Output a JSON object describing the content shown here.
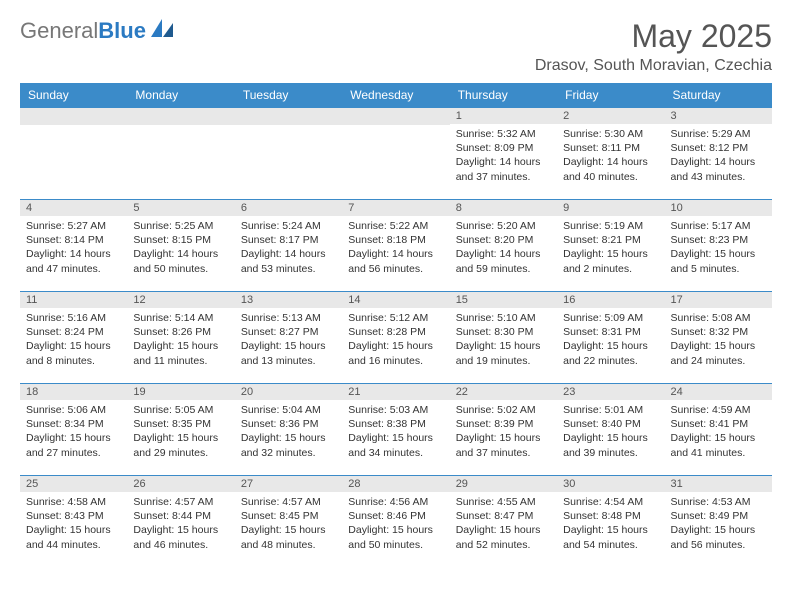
{
  "logo": {
    "text_gray": "General",
    "text_blue": "Blue"
  },
  "header": {
    "month_title": "May 2025",
    "location": "Drasov, South Moravian, Czechia"
  },
  "colors": {
    "header_bg": "#3b8bc9",
    "header_text": "#ffffff",
    "daynum_bg": "#e8e8e8",
    "border": "#3b8bc9",
    "logo_blue": "#2b7ac2",
    "logo_gray": "#777777"
  },
  "weekdays": [
    "Sunday",
    "Monday",
    "Tuesday",
    "Wednesday",
    "Thursday",
    "Friday",
    "Saturday"
  ],
  "weeks": [
    [
      null,
      null,
      null,
      null,
      {
        "day": "1",
        "sunrise": "5:32 AM",
        "sunset": "8:09 PM",
        "daylight": "14 hours and 37 minutes."
      },
      {
        "day": "2",
        "sunrise": "5:30 AM",
        "sunset": "8:11 PM",
        "daylight": "14 hours and 40 minutes."
      },
      {
        "day": "3",
        "sunrise": "5:29 AM",
        "sunset": "8:12 PM",
        "daylight": "14 hours and 43 minutes."
      }
    ],
    [
      {
        "day": "4",
        "sunrise": "5:27 AM",
        "sunset": "8:14 PM",
        "daylight": "14 hours and 47 minutes."
      },
      {
        "day": "5",
        "sunrise": "5:25 AM",
        "sunset": "8:15 PM",
        "daylight": "14 hours and 50 minutes."
      },
      {
        "day": "6",
        "sunrise": "5:24 AM",
        "sunset": "8:17 PM",
        "daylight": "14 hours and 53 minutes."
      },
      {
        "day": "7",
        "sunrise": "5:22 AM",
        "sunset": "8:18 PM",
        "daylight": "14 hours and 56 minutes."
      },
      {
        "day": "8",
        "sunrise": "5:20 AM",
        "sunset": "8:20 PM",
        "daylight": "14 hours and 59 minutes."
      },
      {
        "day": "9",
        "sunrise": "5:19 AM",
        "sunset": "8:21 PM",
        "daylight": "15 hours and 2 minutes."
      },
      {
        "day": "10",
        "sunrise": "5:17 AM",
        "sunset": "8:23 PM",
        "daylight": "15 hours and 5 minutes."
      }
    ],
    [
      {
        "day": "11",
        "sunrise": "5:16 AM",
        "sunset": "8:24 PM",
        "daylight": "15 hours and 8 minutes."
      },
      {
        "day": "12",
        "sunrise": "5:14 AM",
        "sunset": "8:26 PM",
        "daylight": "15 hours and 11 minutes."
      },
      {
        "day": "13",
        "sunrise": "5:13 AM",
        "sunset": "8:27 PM",
        "daylight": "15 hours and 13 minutes."
      },
      {
        "day": "14",
        "sunrise": "5:12 AM",
        "sunset": "8:28 PM",
        "daylight": "15 hours and 16 minutes."
      },
      {
        "day": "15",
        "sunrise": "5:10 AM",
        "sunset": "8:30 PM",
        "daylight": "15 hours and 19 minutes."
      },
      {
        "day": "16",
        "sunrise": "5:09 AM",
        "sunset": "8:31 PM",
        "daylight": "15 hours and 22 minutes."
      },
      {
        "day": "17",
        "sunrise": "5:08 AM",
        "sunset": "8:32 PM",
        "daylight": "15 hours and 24 minutes."
      }
    ],
    [
      {
        "day": "18",
        "sunrise": "5:06 AM",
        "sunset": "8:34 PM",
        "daylight": "15 hours and 27 minutes."
      },
      {
        "day": "19",
        "sunrise": "5:05 AM",
        "sunset": "8:35 PM",
        "daylight": "15 hours and 29 minutes."
      },
      {
        "day": "20",
        "sunrise": "5:04 AM",
        "sunset": "8:36 PM",
        "daylight": "15 hours and 32 minutes."
      },
      {
        "day": "21",
        "sunrise": "5:03 AM",
        "sunset": "8:38 PM",
        "daylight": "15 hours and 34 minutes."
      },
      {
        "day": "22",
        "sunrise": "5:02 AM",
        "sunset": "8:39 PM",
        "daylight": "15 hours and 37 minutes."
      },
      {
        "day": "23",
        "sunrise": "5:01 AM",
        "sunset": "8:40 PM",
        "daylight": "15 hours and 39 minutes."
      },
      {
        "day": "24",
        "sunrise": "4:59 AM",
        "sunset": "8:41 PM",
        "daylight": "15 hours and 41 minutes."
      }
    ],
    [
      {
        "day": "25",
        "sunrise": "4:58 AM",
        "sunset": "8:43 PM",
        "daylight": "15 hours and 44 minutes."
      },
      {
        "day": "26",
        "sunrise": "4:57 AM",
        "sunset": "8:44 PM",
        "daylight": "15 hours and 46 minutes."
      },
      {
        "day": "27",
        "sunrise": "4:57 AM",
        "sunset": "8:45 PM",
        "daylight": "15 hours and 48 minutes."
      },
      {
        "day": "28",
        "sunrise": "4:56 AM",
        "sunset": "8:46 PM",
        "daylight": "15 hours and 50 minutes."
      },
      {
        "day": "29",
        "sunrise": "4:55 AM",
        "sunset": "8:47 PM",
        "daylight": "15 hours and 52 minutes."
      },
      {
        "day": "30",
        "sunrise": "4:54 AM",
        "sunset": "8:48 PM",
        "daylight": "15 hours and 54 minutes."
      },
      {
        "day": "31",
        "sunrise": "4:53 AM",
        "sunset": "8:49 PM",
        "daylight": "15 hours and 56 minutes."
      }
    ]
  ],
  "labels": {
    "sunrise": "Sunrise: ",
    "sunset": "Sunset: ",
    "daylight": "Daylight: "
  }
}
